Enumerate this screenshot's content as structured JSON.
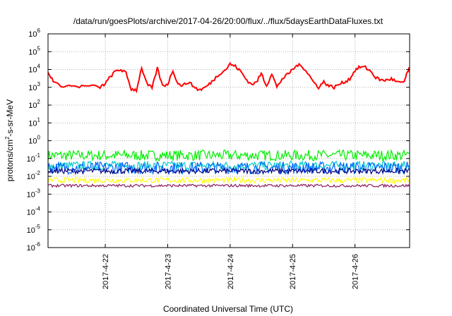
{
  "chart_data": {
    "type": "line",
    "title": "/data/run/goesPlots/archive/2017-04-26/20:00/flux/../flux/5daysEarthDataFluxes.txt",
    "xlabel": "Coordinated Universal Time (UTC)",
    "ylabel": "protons/cm2-s-sr-MeV",
    "ylabel_parts": {
      "pre": "protons/cm",
      "sup": "2",
      "post": "-s-sr-MeV"
    },
    "y_scale": "log",
    "ylim_exp": [
      -6,
      6
    ],
    "y_ticks": [
      {
        "base": "10",
        "exp": "6"
      },
      {
        "base": "10",
        "exp": "5"
      },
      {
        "base": "10",
        "exp": "4"
      },
      {
        "base": "10",
        "exp": "3"
      },
      {
        "base": "10",
        "exp": "2"
      },
      {
        "base": "10",
        "exp": "1"
      },
      {
        "base": "10",
        "exp": "0"
      },
      {
        "base": "10",
        "exp": "-1"
      },
      {
        "base": "10",
        "exp": "-2"
      },
      {
        "base": "10",
        "exp": "-3"
      },
      {
        "base": "10",
        "exp": "-4"
      },
      {
        "base": "10",
        "exp": "-5"
      },
      {
        "base": "10",
        "exp": "-6"
      }
    ],
    "x_range_days": [
      "2017-04-21 02:00",
      "2017-04-26 21:00"
    ],
    "x_ticks": [
      "2017-4-22",
      "2017-4-23",
      "2017-4-24",
      "2017-4-25",
      "2017-4-26"
    ],
    "grid": true,
    "series": [
      {
        "color": "#ff0000",
        "points": [
          [
            "2017-04-21 02:00",
            6000
          ],
          [
            "2017-04-21 04:00",
            2500
          ],
          [
            "2017-04-21 06:00",
            1300
          ],
          [
            "2017-04-21 10:00",
            1200
          ],
          [
            "2017-04-21 14:00",
            1100
          ],
          [
            "2017-04-21 18:00",
            1200
          ],
          [
            "2017-04-21 22:00",
            1000
          ],
          [
            "2017-04-22 00:00",
            1600
          ],
          [
            "2017-04-22 02:00",
            4000
          ],
          [
            "2017-04-22 04:00",
            8000
          ],
          [
            "2017-04-22 06:00",
            10000
          ],
          [
            "2017-04-22 08:00",
            6000
          ],
          [
            "2017-04-22 10:00",
            800
          ],
          [
            "2017-04-22 12:00",
            700
          ],
          [
            "2017-04-22 14:00",
            13000
          ],
          [
            "2017-04-22 16:00",
            1500
          ],
          [
            "2017-04-22 18:00",
            900
          ],
          [
            "2017-04-22 20:00",
            12000
          ],
          [
            "2017-04-22 22:00",
            1200
          ],
          [
            "2017-04-23 00:00",
            1500
          ],
          [
            "2017-04-23 02:00",
            9000
          ],
          [
            "2017-04-23 04:00",
            1500
          ],
          [
            "2017-04-23 06:00",
            1300
          ],
          [
            "2017-04-23 08:00",
            2000
          ],
          [
            "2017-04-23 10:00",
            1100
          ],
          [
            "2017-04-23 12:00",
            700
          ],
          [
            "2017-04-23 14:00",
            900
          ],
          [
            "2017-04-23 16:00",
            1500
          ],
          [
            "2017-04-23 18:00",
            3000
          ],
          [
            "2017-04-23 20:00",
            6000
          ],
          [
            "2017-04-23 22:00",
            9000
          ],
          [
            "2017-04-24 00:00",
            20000
          ],
          [
            "2017-04-24 02:00",
            15000
          ],
          [
            "2017-04-24 04:00",
            8000
          ],
          [
            "2017-04-24 06:00",
            3000
          ],
          [
            "2017-04-24 08:00",
            1500
          ],
          [
            "2017-04-24 10:00",
            1800
          ],
          [
            "2017-04-24 12:00",
            6000
          ],
          [
            "2017-04-24 14:00",
            1200
          ],
          [
            "2017-04-24 16:00",
            6000
          ],
          [
            "2017-04-24 18:00",
            1000
          ],
          [
            "2017-04-24 20:00",
            3000
          ],
          [
            "2017-04-24 22:00",
            5000
          ],
          [
            "2017-04-25 00:00",
            10000
          ],
          [
            "2017-04-25 02:00",
            18000
          ],
          [
            "2017-04-25 04:00",
            14000
          ],
          [
            "2017-04-25 06:00",
            6000
          ],
          [
            "2017-04-25 08:00",
            2000
          ],
          [
            "2017-04-25 10:00",
            1000
          ],
          [
            "2017-04-25 12:00",
            2000
          ],
          [
            "2017-04-25 14:00",
            1200
          ],
          [
            "2017-04-25 16:00",
            1000
          ],
          [
            "2017-04-25 18:00",
            1500
          ],
          [
            "2017-04-25 20:00",
            2000
          ],
          [
            "2017-04-25 22:00",
            3000
          ],
          [
            "2017-04-26 00:00",
            9000
          ],
          [
            "2017-04-26 02:00",
            14000
          ],
          [
            "2017-04-26 04:00",
            13000
          ],
          [
            "2017-04-26 06:00",
            8000
          ],
          [
            "2017-04-26 08:00",
            3500
          ],
          [
            "2017-04-26 10:00",
            2500
          ],
          [
            "2017-04-26 12:00",
            2500
          ],
          [
            "2017-04-26 14:00",
            3000
          ],
          [
            "2017-04-26 16:00",
            2000
          ],
          [
            "2017-04-26 18:00",
            1700
          ],
          [
            "2017-04-26 19:00",
            2200
          ],
          [
            "2017-04-26 20:00",
            6000
          ],
          [
            "2017-04-26 21:00",
            13000
          ]
        ]
      },
      {
        "color": "#00ee00",
        "level": 0.15,
        "spread_exp": 0.3
      },
      {
        "color": "#00cccc",
        "level": 0.04,
        "spread_exp": 0.25
      },
      {
        "color": "#0066ff",
        "level": 0.03,
        "spread_exp": 0.35
      },
      {
        "color": "#000080",
        "level": 0.02,
        "spread_exp": 0.15
      },
      {
        "color": "#ffff00",
        "level": 0.006,
        "spread_exp": 0.15
      },
      {
        "color": "#8b1c62",
        "level": 0.003,
        "spread_exp": 0.08
      }
    ]
  }
}
